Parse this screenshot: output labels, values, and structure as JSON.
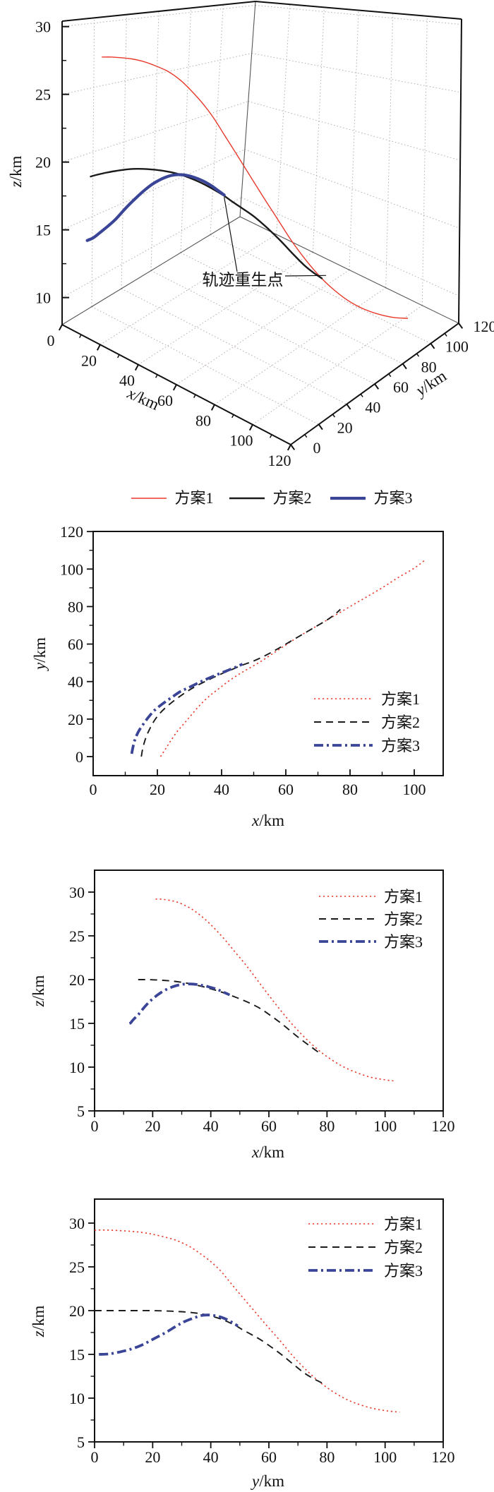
{
  "figure": {
    "annotation": "轨迹重生点",
    "legend_labels": [
      "方案1",
      "方案2",
      "方案3"
    ],
    "colors": {
      "scheme1": "#e8392b",
      "scheme2": "#1a1a1a",
      "scheme3": "#3a4598",
      "grid": "#b5aca6"
    }
  },
  "trajectories": [
    {
      "name": "方案1",
      "color": "#e8392b",
      "width2d": 1.6,
      "dash2d": "2.2 3.8",
      "width3d": 1.4,
      "points": [
        [
          21,
          0,
          29.2
        ],
        [
          22.5,
          4,
          29.2
        ],
        [
          24,
          8,
          29.15
        ],
        [
          26,
          13,
          29.05
        ],
        [
          28,
          17,
          28.9
        ],
        [
          30,
          21,
          28.65
        ],
        [
          33,
          27,
          28.15
        ],
        [
          36,
          32,
          27.45
        ],
        [
          39,
          36,
          26.6
        ],
        [
          42,
          40,
          25.6
        ],
        [
          45,
          43.5,
          24.5
        ],
        [
          48,
          46.5,
          23.3
        ],
        [
          52,
          50.5,
          21.7
        ],
        [
          56,
          55,
          19.95
        ],
        [
          60,
          59.5,
          18.2
        ],
        [
          64,
          64,
          16.5
        ],
        [
          68,
          68,
          14.9
        ],
        [
          72,
          72,
          13.5
        ],
        [
          76,
          76,
          12.25
        ],
        [
          80,
          80,
          11.2
        ],
        [
          85,
          85,
          10.15
        ],
        [
          90,
          90,
          9.4
        ],
        [
          95,
          95.5,
          8.85
        ],
        [
          100,
          100.5,
          8.55
        ],
        [
          103.5,
          105,
          8.4
        ]
      ]
    },
    {
      "name": "方案2",
      "color": "#1a1a1a",
      "width2d": 1.9,
      "dash2d": "10 7",
      "width3d": 2.4,
      "points": [
        [
          15,
          0,
          20
        ],
        [
          15.4,
          4,
          20
        ],
        [
          16.2,
          9,
          20
        ],
        [
          17.4,
          14,
          20
        ],
        [
          19,
          19,
          20
        ],
        [
          21,
          23.5,
          19.97
        ],
        [
          23.5,
          27.5,
          19.92
        ],
        [
          26.5,
          31.5,
          19.84
        ],
        [
          29.5,
          35,
          19.72
        ],
        [
          32.5,
          38,
          19.55
        ],
        [
          36,
          41,
          19.3
        ],
        [
          39.5,
          43.8,
          19.0
        ],
        [
          43,
          46.3,
          18.65
        ],
        [
          46.5,
          48.8,
          18.25
        ],
        [
          50,
          51,
          17.8
        ],
        [
          53.5,
          53.8,
          17.3
        ],
        [
          57,
          57,
          16.7
        ],
        [
          61,
          61,
          15.8
        ],
        [
          65,
          65,
          14.8
        ],
        [
          69,
          69,
          13.7
        ],
        [
          72.5,
          72.5,
          12.8
        ],
        [
          75,
          75.5,
          12.2
        ],
        [
          77,
          78.5,
          11.7
        ]
      ]
    },
    {
      "name": "方案3",
      "color": "#3a4598",
      "width2d": 3.8,
      "dash2d": "13 5 3 5",
      "width3d": 4.2,
      "points": [
        [
          12,
          1.5,
          15
        ],
        [
          12.4,
          5,
          15.05
        ],
        [
          13,
          9,
          15.3
        ],
        [
          14,
          13,
          15.65
        ],
        [
          15.3,
          16.5,
          16.1
        ],
        [
          17,
          20.5,
          16.8
        ],
        [
          19,
          24.5,
          17.5
        ],
        [
          21.5,
          28,
          18.2
        ],
        [
          24,
          31,
          18.75
        ],
        [
          27,
          34.5,
          19.2
        ],
        [
          30,
          37,
          19.45
        ],
        [
          33,
          39.5,
          19.5
        ],
        [
          36,
          41.8,
          19.4
        ],
        [
          39,
          44,
          19.2
        ],
        [
          42,
          46,
          18.9
        ],
        [
          44.5,
          47.8,
          18.55
        ],
        [
          46.5,
          49.3,
          18.25
        ]
      ]
    }
  ],
  "chart_data": [
    {
      "type": "line3d",
      "xlabel": "x/km",
      "ylabel": "y/km",
      "zlabel": "z/km",
      "xlim": [
        0,
        120
      ],
      "ylim": [
        0,
        120
      ],
      "zlim": [
        8,
        30.4
      ],
      "xticks": [
        0,
        20,
        40,
        60,
        80,
        100,
        120
      ],
      "yticks": [
        0,
        20,
        40,
        60,
        80,
        100,
        120
      ],
      "zticks": [
        10,
        15,
        20,
        25,
        30
      ],
      "xminor": [
        10,
        30,
        50,
        70,
        90,
        110
      ],
      "yminor": [
        10,
        30,
        50,
        70,
        90,
        110
      ],
      "zminor": [
        12.5,
        17.5,
        22.5,
        27.5
      ],
      "grid": true,
      "annotation": "轨迹重生点",
      "legend": [
        "方案1",
        "方案2",
        "方案3"
      ],
      "legend_position": "below"
    },
    {
      "type": "line",
      "x": "x",
      "y": "y",
      "xlabel": "x/km",
      "ylabel": "y/km",
      "xlim": [
        0,
        109
      ],
      "ylim": [
        -10,
        120
      ],
      "xticks": [
        0,
        20,
        40,
        60,
        80,
        100
      ],
      "xminor": [
        10,
        30,
        50,
        70,
        90
      ],
      "yticks": [
        0,
        20,
        40,
        60,
        80,
        100,
        120
      ],
      "yminor": [
        10,
        30,
        50,
        70,
        90,
        110
      ],
      "grid": false,
      "legend": [
        "方案1",
        "方案2",
        "方案3"
      ],
      "legend_position": "right-middle"
    },
    {
      "type": "line",
      "x": "x",
      "y": "z",
      "xlabel": "x/km",
      "ylabel": "z/km",
      "xlim": [
        0,
        120
      ],
      "ylim": [
        5,
        32.5
      ],
      "xticks": [
        0,
        20,
        40,
        60,
        80,
        100,
        120
      ],
      "xminor": [
        10,
        30,
        50,
        70,
        90,
        110
      ],
      "yticks": [
        5,
        10,
        15,
        20,
        25,
        30
      ],
      "yminor": [
        7.5,
        12.5,
        17.5,
        22.5,
        27.5
      ],
      "grid": false,
      "legend": [
        "方案1",
        "方案2",
        "方案3"
      ],
      "legend_position": "top-right"
    },
    {
      "type": "line",
      "x": "y",
      "y": "z",
      "xlabel": "y/km",
      "ylabel": "z/km",
      "xlim": [
        0,
        120
      ],
      "ylim": [
        5,
        32.7
      ],
      "xticks": [
        0,
        20,
        40,
        60,
        80,
        100,
        120
      ],
      "xminor": [
        10,
        30,
        50,
        70,
        90,
        110
      ],
      "yticks": [
        5,
        10,
        15,
        20,
        25,
        30
      ],
      "yminor": [
        7.5,
        12.5,
        17.5,
        22.5,
        27.5
      ],
      "grid": false,
      "legend": [
        "方案1",
        "方案2",
        "方案3"
      ],
      "legend_position": "top-right"
    }
  ]
}
